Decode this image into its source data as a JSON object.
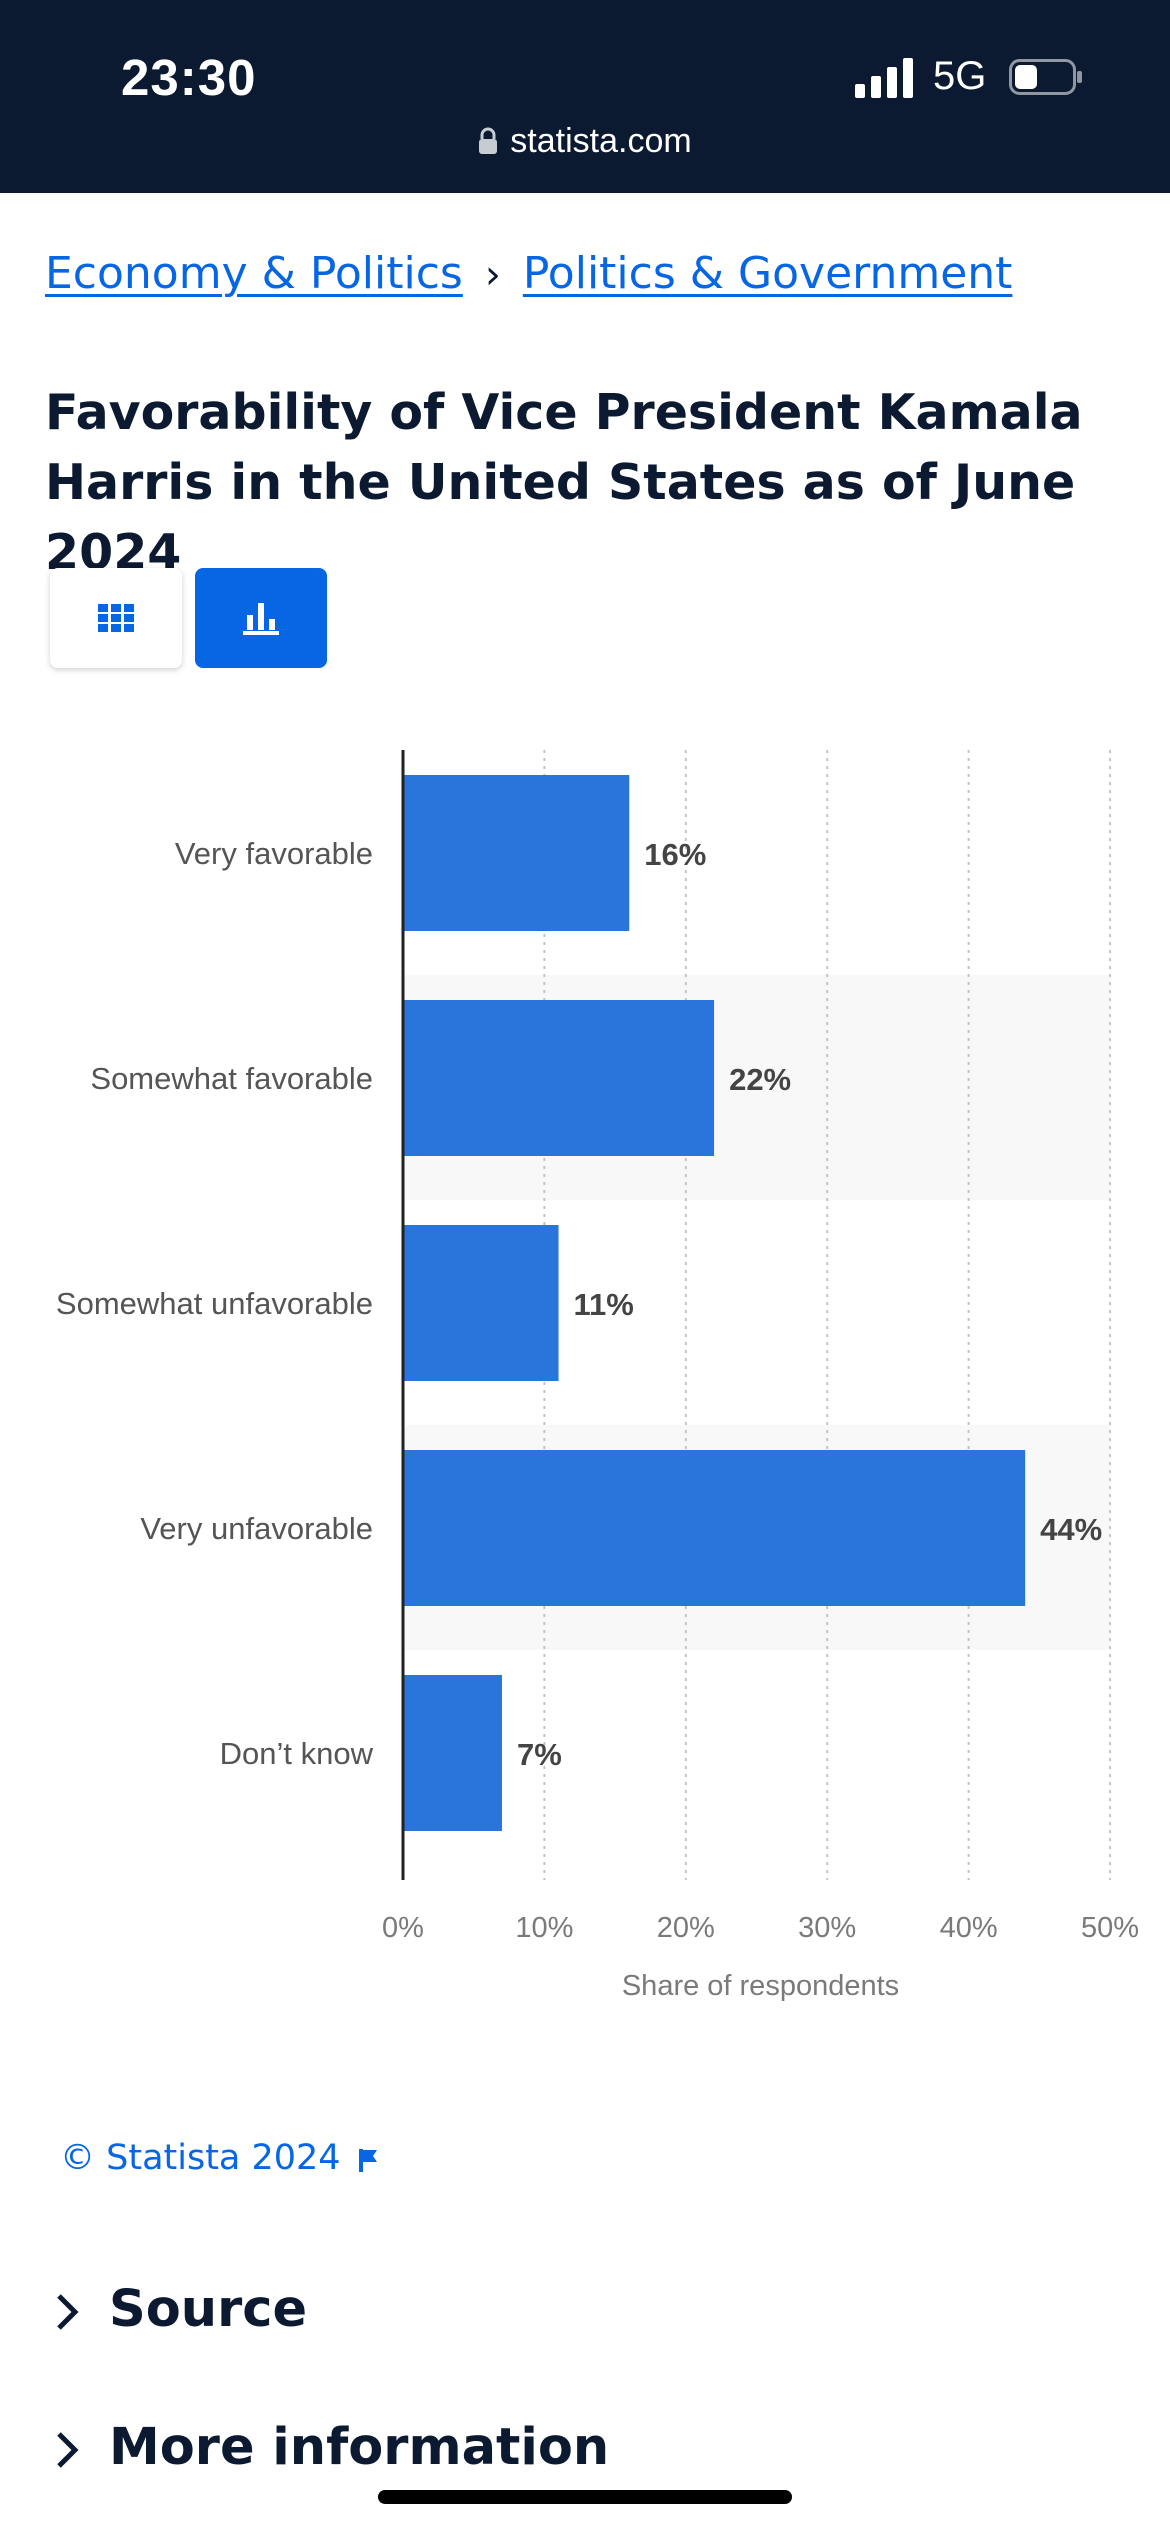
{
  "status_bar": {
    "time": "23:30",
    "network": "5G",
    "url": "statista.com"
  },
  "breadcrumb": {
    "items": [
      "Economy & Politics",
      "Politics & Government"
    ],
    "separator": "›"
  },
  "page_title": "Favorability of Vice President Kamala Harris in the United States as of June 2024",
  "view_toggle": {
    "active": "chart",
    "icons": [
      "table-grid-icon",
      "bar-chart-icon"
    ]
  },
  "colors": {
    "bar": "#2a75dc",
    "accent": "#0666e3",
    "header_bg": "#0b1a30"
  },
  "chart_data": {
    "type": "bar",
    "orientation": "horizontal",
    "categories": [
      "Very favorable",
      "Somewhat favorable",
      "Somewhat unfavorable",
      "Very unfavorable",
      "Don’t know"
    ],
    "values": [
      16,
      22,
      11,
      44,
      7
    ],
    "value_labels": [
      "16%",
      "22%",
      "11%",
      "44%",
      "7%"
    ],
    "xlabel": "Share of respondents",
    "xlim": [
      0,
      50
    ],
    "x_ticks": [
      "0%",
      "10%",
      "20%",
      "30%",
      "40%",
      "50%"
    ],
    "grid": "vertical dotted"
  },
  "copyright": "© Statista 2024",
  "sections": [
    "Source",
    "More information"
  ]
}
